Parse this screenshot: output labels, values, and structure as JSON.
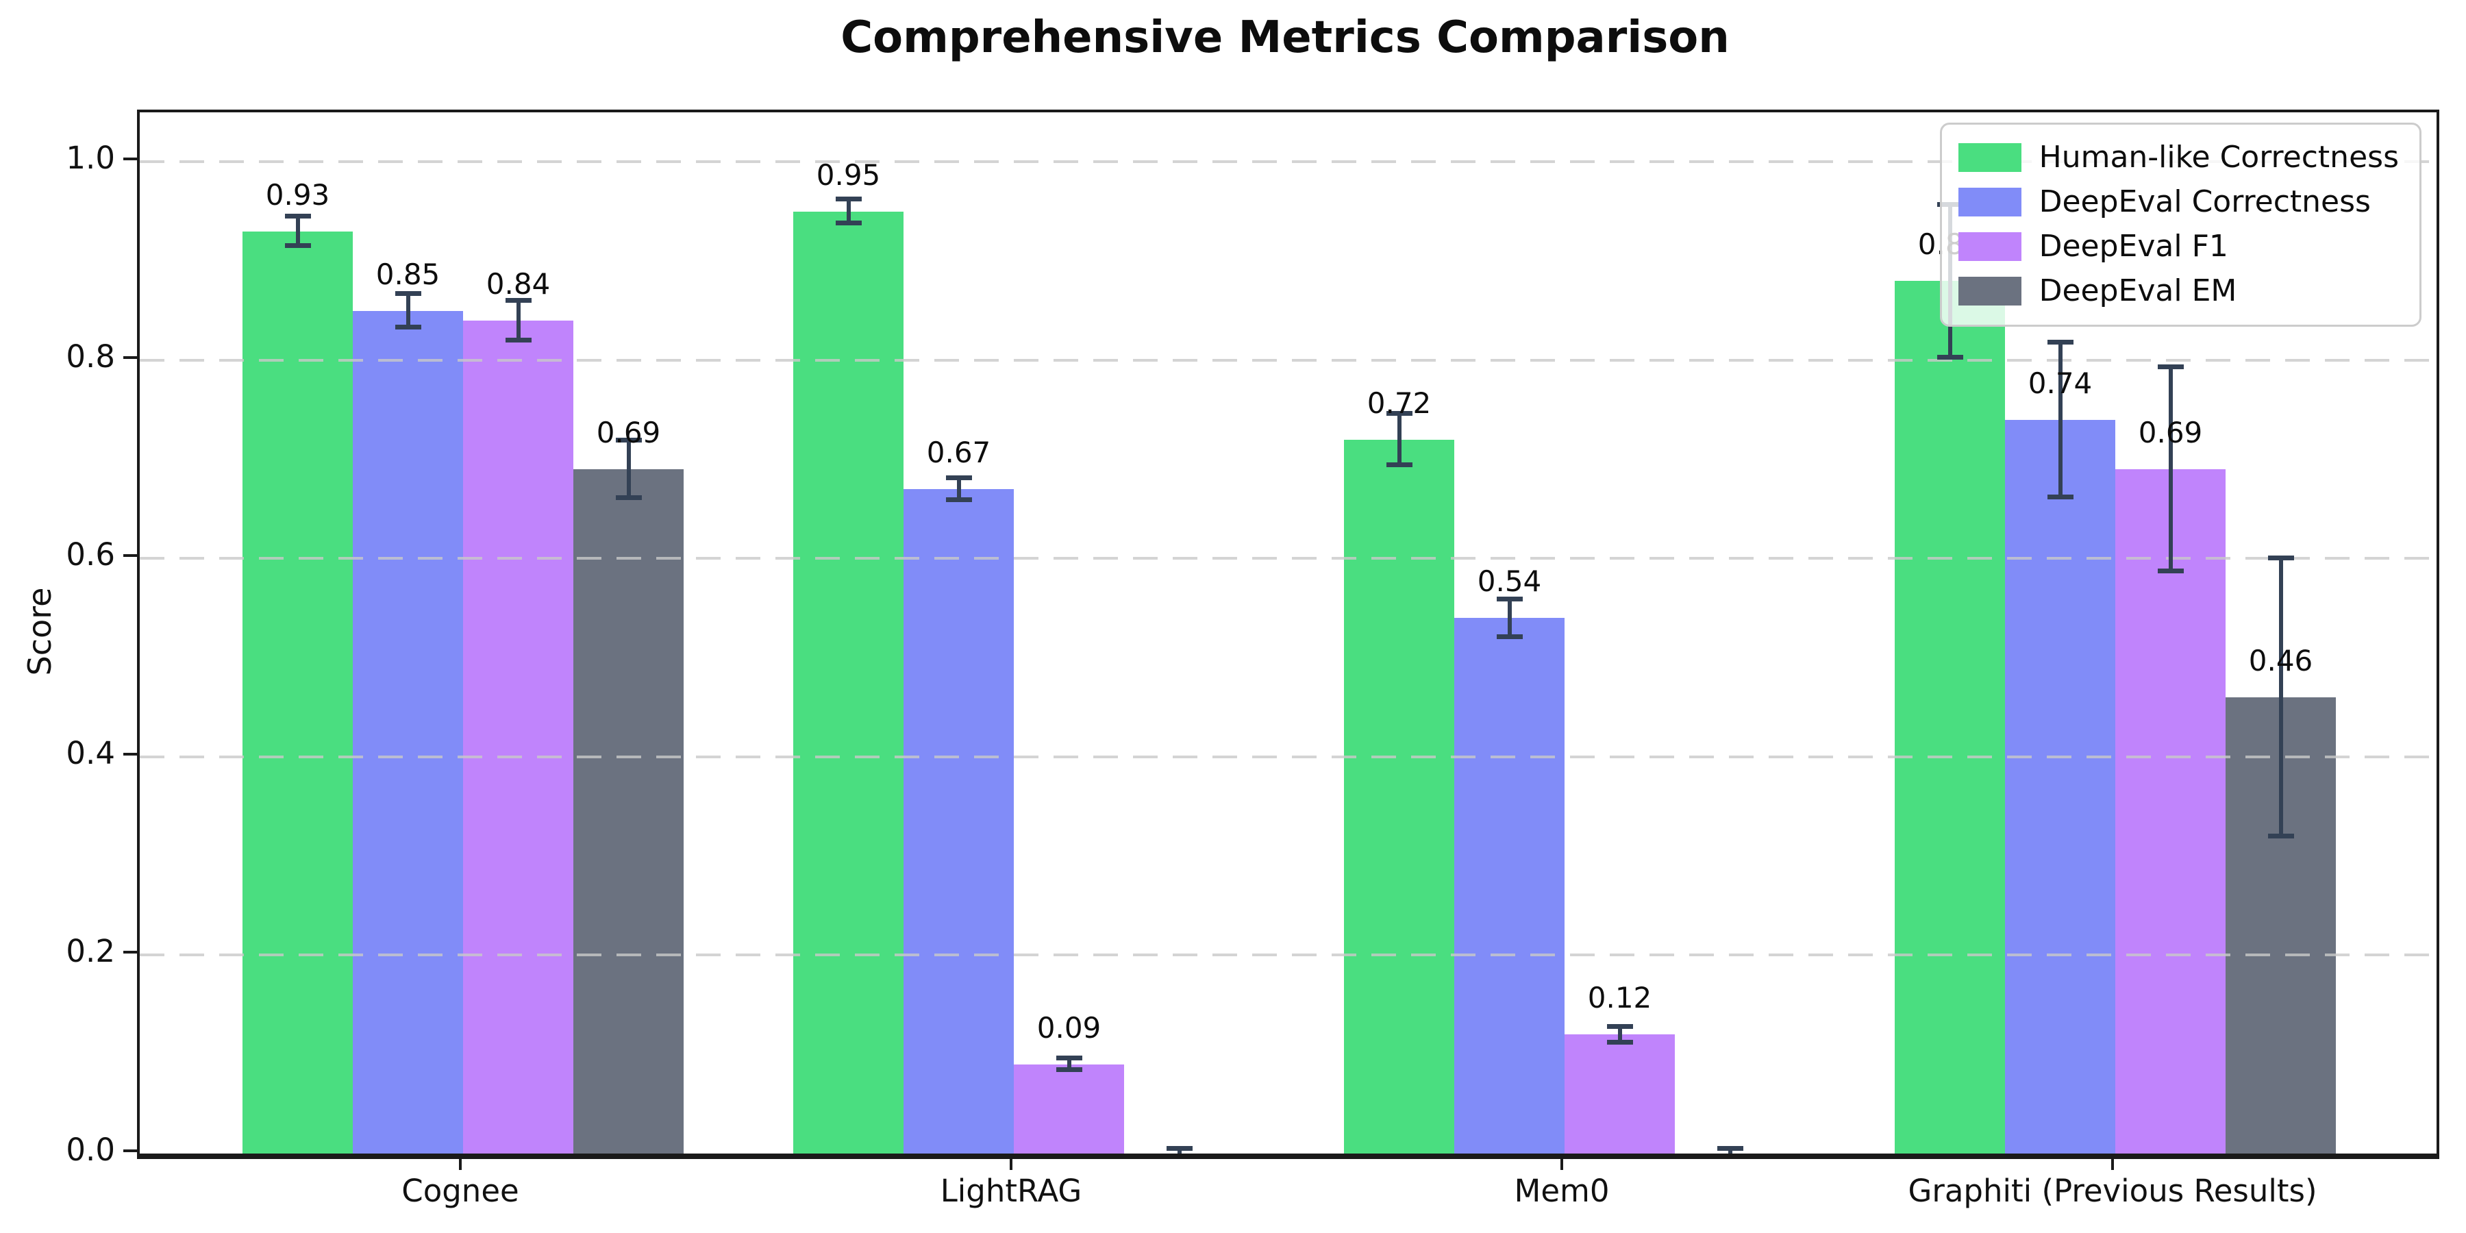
{
  "title": "Comprehensive Metrics Comparison",
  "ylabel": "Score",
  "chart_data": {
    "type": "bar",
    "title": "Comprehensive Metrics Comparison",
    "xlabel": "",
    "ylabel": "Score",
    "categories": [
      "Cognee",
      "LightRAG",
      "Mem0",
      "Graphiti (Previous Results)"
    ],
    "series": [
      {
        "name": "Human-like Correctness",
        "color": "#4ade80",
        "values": [
          0.93,
          0.95,
          0.72,
          0.88
        ],
        "errors": [
          0.015,
          0.012,
          0.026,
          0.077
        ],
        "labels": [
          "0.93",
          "0.95",
          "0.72",
          "0.88"
        ]
      },
      {
        "name": "DeepEval Correctness",
        "color": "#818cf8",
        "values": [
          0.85,
          0.67,
          0.54,
          0.74
        ],
        "errors": [
          0.017,
          0.011,
          0.019,
          0.078
        ],
        "labels": [
          "0.85",
          "0.67",
          "0.54",
          "0.74"
        ]
      },
      {
        "name": "DeepEval F1",
        "color": "#c084fc",
        "values": [
          0.84,
          0.09,
          0.12,
          0.69
        ],
        "errors": [
          0.02,
          0.006,
          0.008,
          0.103
        ],
        "labels": [
          "0.84",
          "0.09",
          "0.12",
          "0.69"
        ]
      },
      {
        "name": "DeepEval EM",
        "color": "#6b7280",
        "values": [
          0.69,
          0.0,
          0.0,
          0.46
        ],
        "errors": [
          0.029,
          0.005,
          0.005,
          0.14
        ],
        "labels": [
          "0.69",
          "",
          "",
          "0.46"
        ]
      }
    ],
    "ylim": [
      0,
      1.05
    ],
    "yticks": [
      "0.0",
      "0.2",
      "0.4",
      "0.6",
      "0.8",
      "1.0"
    ],
    "grid": "horizontal dashed, drawn above bars",
    "legend_position": "upper right",
    "error_bar_color": "#334155"
  }
}
